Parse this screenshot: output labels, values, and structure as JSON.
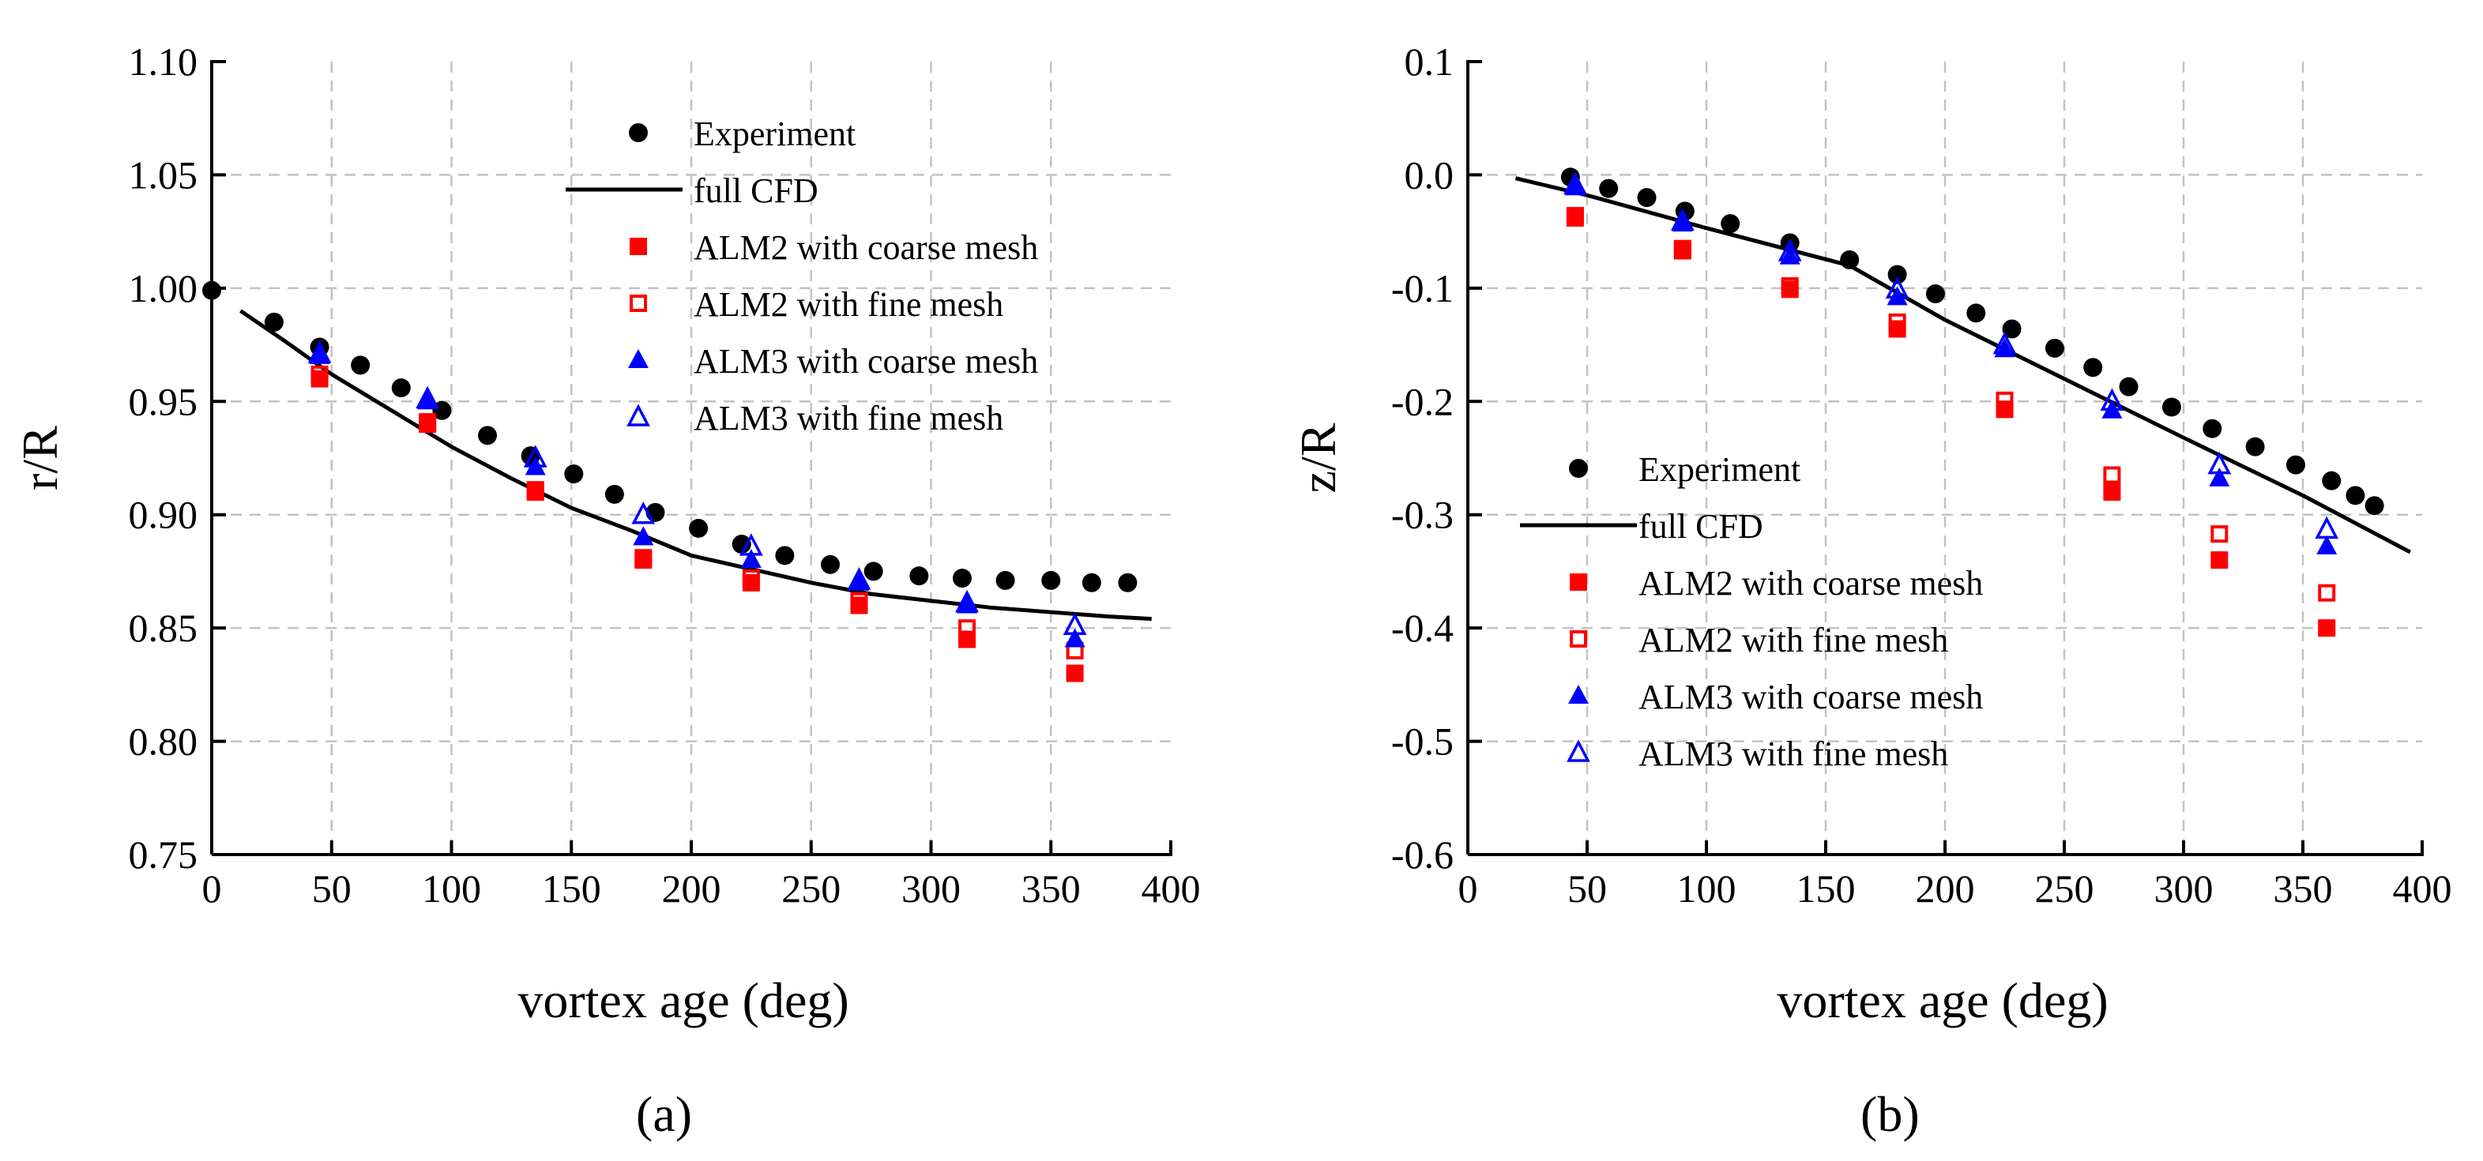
{
  "chart_data": [
    {
      "type": "scatter",
      "panel_label": "(a)",
      "xlabel": "vortex age (deg)",
      "ylabel": "r/R",
      "xlim": [
        0,
        400
      ],
      "ylim": [
        0.75,
        1.1
      ],
      "xticks": [
        0,
        50,
        100,
        150,
        200,
        250,
        300,
        350,
        400
      ],
      "yticks": [
        0.75,
        0.8,
        0.85,
        0.9,
        0.95,
        1.0,
        1.05,
        1.1
      ],
      "xtick_labels": [
        "0",
        "50",
        "100",
        "150",
        "200",
        "250",
        "300",
        "350",
        "400"
      ],
      "ytick_labels": [
        "0.75",
        "0.80",
        "0.85",
        "0.90",
        "0.95",
        "1.00",
        "1.05",
        "1.10"
      ],
      "grid": true,
      "legend_position": "top-center",
      "series": [
        {
          "name": "Experiment",
          "marker": "circle-filled",
          "color": "#000000",
          "x": [
            0,
            26,
            45,
            62,
            79,
            96,
            115,
            133,
            151,
            168,
            185,
            203,
            221,
            239,
            258,
            276,
            295,
            313,
            331,
            350,
            367,
            382
          ],
          "y": [
            0.999,
            0.985,
            0.974,
            0.966,
            0.956,
            0.946,
            0.935,
            0.926,
            0.918,
            0.909,
            0.901,
            0.894,
            0.887,
            0.882,
            0.878,
            0.875,
            0.873,
            0.872,
            0.871,
            0.871,
            0.87,
            0.87
          ]
        },
        {
          "name": "full CFD",
          "marker": "line",
          "color": "#000000",
          "x": [
            12,
            30,
            50,
            75,
            100,
            125,
            150,
            175,
            200,
            225,
            250,
            275,
            300,
            325,
            350,
            375,
            392
          ],
          "y": [
            0.99,
            0.977,
            0.962,
            0.946,
            0.93,
            0.916,
            0.903,
            0.893,
            0.882,
            0.876,
            0.87,
            0.865,
            0.862,
            0.859,
            0.857,
            0.855,
            0.854
          ]
        },
        {
          "name": "ALM2 with coarse mesh",
          "marker": "square-filled",
          "color": "#ff0000",
          "x": [
            45,
            90,
            135,
            180,
            225,
            270,
            315,
            360
          ],
          "y": [
            0.96,
            0.94,
            0.91,
            0.88,
            0.87,
            0.86,
            0.845,
            0.83
          ]
        },
        {
          "name": "ALM2 with fine mesh",
          "marker": "square-open",
          "color": "#ff0000",
          "x": [
            45,
            90,
            135,
            180,
            225,
            270,
            315,
            360
          ],
          "y": [
            0.962,
            0.941,
            0.911,
            0.881,
            0.872,
            0.862,
            0.85,
            0.84
          ]
        },
        {
          "name": "ALM3 with coarse mesh",
          "marker": "triangle-filled",
          "color": "#0000ff",
          "x": [
            45,
            90,
            135,
            180,
            225,
            270,
            315,
            360
          ],
          "y": [
            0.97,
            0.95,
            0.921,
            0.89,
            0.88,
            0.87,
            0.86,
            0.845
          ]
        },
        {
          "name": "ALM3 with fine mesh",
          "marker": "triangle-open",
          "color": "#0000ff",
          "x": [
            45,
            90,
            135,
            180,
            225,
            270,
            315,
            360
          ],
          "y": [
            0.971,
            0.951,
            0.925,
            0.9,
            0.886,
            0.871,
            0.861,
            0.851
          ]
        }
      ]
    },
    {
      "type": "scatter",
      "panel_label": "(b)",
      "xlabel": "vortex age (deg)",
      "ylabel": "z/R",
      "xlim": [
        0,
        400
      ],
      "ylim": [
        -0.6,
        0.1
      ],
      "xticks": [
        0,
        50,
        100,
        150,
        200,
        250,
        300,
        350,
        400
      ],
      "yticks": [
        -0.6,
        -0.5,
        -0.4,
        -0.3,
        -0.2,
        -0.1,
        0.0,
        0.1
      ],
      "xtick_labels": [
        "0",
        "50",
        "100",
        "150",
        "200",
        "250",
        "300",
        "350",
        "400"
      ],
      "ytick_labels": [
        "-0.6",
        "-0.5",
        "-0.4",
        "-0.3",
        "-0.2",
        "-0.1",
        "0.0",
        "0.1"
      ],
      "grid": true,
      "legend_position": "bottom-left",
      "series": [
        {
          "name": "Experiment",
          "marker": "circle-filled",
          "color": "#000000",
          "x": [
            43,
            59,
            75,
            91,
            110,
            135,
            160,
            180,
            196,
            213,
            228,
            246,
            262,
            277,
            295,
            312,
            330,
            347,
            362,
            372,
            380
          ],
          "y": [
            -0.002,
            -0.012,
            -0.02,
            -0.032,
            -0.043,
            -0.06,
            -0.075,
            -0.088,
            -0.105,
            -0.122,
            -0.136,
            -0.153,
            -0.17,
            -0.187,
            -0.205,
            -0.224,
            -0.24,
            -0.256,
            -0.27,
            -0.283,
            -0.292
          ]
        },
        {
          "name": "full CFD",
          "marker": "line",
          "color": "#000000",
          "x": [
            20,
            50,
            100,
            160,
            200,
            250,
            300,
            350,
            395
          ],
          "y": [
            -0.003,
            -0.018,
            -0.047,
            -0.08,
            -0.128,
            -0.18,
            -0.232,
            -0.283,
            -0.333
          ]
        },
        {
          "name": "ALM2 with coarse mesh",
          "marker": "square-filled",
          "color": "#ff0000",
          "x": [
            45,
            90,
            135,
            180,
            225,
            270,
            315,
            360
          ],
          "y": [
            -0.038,
            -0.067,
            -0.101,
            -0.136,
            -0.207,
            -0.28,
            -0.34,
            -0.4
          ]
        },
        {
          "name": "ALM2 with fine mesh",
          "marker": "square-open",
          "color": "#ff0000",
          "x": [
            45,
            90,
            135,
            180,
            225,
            270,
            315,
            360
          ],
          "y": [
            -0.036,
            -0.065,
            -0.098,
            -0.13,
            -0.199,
            -0.265,
            -0.317,
            -0.369
          ]
        },
        {
          "name": "ALM3 with coarse mesh",
          "marker": "triangle-filled",
          "color": "#0000ff",
          "x": [
            45,
            90,
            135,
            180,
            225,
            270,
            315,
            360
          ],
          "y": [
            -0.011,
            -0.043,
            -0.072,
            -0.108,
            -0.154,
            -0.208,
            -0.268,
            -0.328
          ]
        },
        {
          "name": "ALM3 with fine mesh",
          "marker": "triangle-open",
          "color": "#0000ff",
          "x": [
            45,
            90,
            135,
            180,
            225,
            270,
            315,
            360
          ],
          "y": [
            -0.009,
            -0.041,
            -0.068,
            -0.101,
            -0.15,
            -0.2,
            -0.256,
            -0.313
          ]
        }
      ]
    }
  ]
}
